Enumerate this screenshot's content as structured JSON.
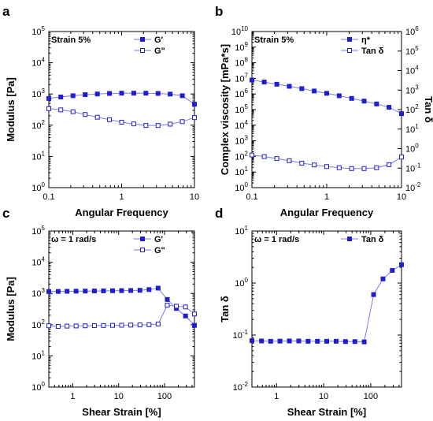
{
  "chart_data": [
    {
      "type": "line",
      "panel_label": "a",
      "annotation": "Strain 5%",
      "xlabel": "Angular Frequency",
      "ylabel": "Modulus [Pa]",
      "xscale": "log",
      "yscale": "log",
      "xlim": [
        0.1,
        10
      ],
      "ylim": [
        1,
        100000
      ],
      "xticks": [
        0.1,
        1,
        10
      ],
      "xtick_labels": [
        "0.1",
        "1",
        "10"
      ],
      "yticks": [
        1,
        10,
        100,
        1000,
        10000,
        100000
      ],
      "ytick_labels": [
        [
          "10",
          "0"
        ],
        [
          "10",
          "1"
        ],
        [
          "10",
          "2"
        ],
        [
          "10",
          "3"
        ],
        [
          "10",
          "4"
        ],
        [
          "10",
          "5"
        ]
      ],
      "legend_position": "top-right",
      "series": [
        {
          "name": "G'",
          "marker": "filled-square",
          "axis": "left",
          "x": [
            0.1,
            0.146,
            0.215,
            0.316,
            0.464,
            0.681,
            1.0,
            1.468,
            2.154,
            3.162,
            4.642,
            6.813,
            10
          ],
          "y": [
            720,
            800,
            880,
            950,
            1000,
            1040,
            1060,
            1060,
            1060,
            1040,
            990,
            880,
            470
          ]
        },
        {
          "name": "G\"",
          "marker": "open-square",
          "axis": "left",
          "x": [
            0.1,
            0.146,
            0.215,
            0.316,
            0.464,
            0.681,
            1.0,
            1.468,
            2.154,
            3.162,
            4.642,
            6.813,
            10
          ],
          "y": [
            340,
            310,
            270,
            220,
            180,
            150,
            125,
            110,
            98,
            98,
            108,
            130,
            175
          ]
        }
      ]
    },
    {
      "type": "line",
      "panel_label": "b",
      "annotation": "Strain 5%",
      "xlabel": "Angular Frequency",
      "ylabel": "Complex viscosity [mPa*s]",
      "y2label": "Tan δ",
      "xscale": "log",
      "yscale": "log",
      "y2scale": "log",
      "xlim": [
        0.1,
        10
      ],
      "ylim": [
        1,
        10000000000
      ],
      "y2lim": [
        0.01,
        1000000
      ],
      "xticks": [
        0.1,
        1,
        10
      ],
      "xtick_labels": [
        "0.1",
        "1",
        "10"
      ],
      "yticks": [
        1,
        10,
        100,
        1000,
        10000,
        100000,
        1000000,
        10000000,
        100000000,
        1000000000,
        10000000000
      ],
      "ytick_labels": [
        [
          "10",
          "0"
        ],
        [
          "10",
          "1"
        ],
        [
          "10",
          "2"
        ],
        [
          "10",
          "3"
        ],
        [
          "10",
          "4"
        ],
        [
          "10",
          "5"
        ],
        [
          "10",
          "6"
        ],
        [
          "10",
          "7"
        ],
        [
          "10",
          "8"
        ],
        [
          "10",
          "9"
        ],
        [
          "10",
          "10"
        ]
      ],
      "y2ticks": [
        0.01,
        0.1,
        1,
        10,
        100,
        1000,
        10000,
        100000,
        1000000
      ],
      "y2tick_labels": [
        [
          "10",
          "-2"
        ],
        [
          "10",
          "-1"
        ],
        [
          "10",
          "0"
        ],
        [
          "10",
          "1"
        ],
        [
          "10",
          "2"
        ],
        [
          "10",
          "3"
        ],
        [
          "10",
          "4"
        ],
        [
          "10",
          "5"
        ],
        [
          "10",
          "6"
        ]
      ],
      "legend_position": "top-right",
      "series": [
        {
          "name": "η*",
          "marker": "filled-square",
          "axis": "left",
          "x": [
            0.1,
            0.146,
            0.215,
            0.316,
            0.464,
            0.681,
            1.0,
            1.468,
            2.154,
            3.162,
            4.642,
            6.813,
            10
          ],
          "y": [
            7800000,
            5800000,
            4200000,
            3100000,
            2200000,
            1550000,
            1100000,
            770000,
            520000,
            350000,
            230000,
            140000,
            55000
          ]
        },
        {
          "name": "Tan δ",
          "marker": "open-square",
          "axis": "right",
          "x": [
            0.1,
            0.146,
            0.215,
            0.316,
            0.464,
            0.681,
            1.0,
            1.468,
            2.154,
            3.162,
            4.642,
            6.813,
            10
          ],
          "y": [
            0.47,
            0.39,
            0.31,
            0.24,
            0.18,
            0.145,
            0.12,
            0.105,
            0.095,
            0.095,
            0.105,
            0.15,
            0.37
          ]
        }
      ]
    },
    {
      "type": "line",
      "panel_label": "c",
      "annotation": "ω = 1 rad/s",
      "xlabel": "Shear Strain [%]",
      "ylabel": "Modulus [Pa]",
      "xscale": "log",
      "yscale": "log",
      "xlim": [
        0.3,
        450
      ],
      "ylim": [
        1,
        100000
      ],
      "xticks": [
        1,
        10,
        100
      ],
      "xtick_labels": [
        "1",
        "10",
        "100"
      ],
      "yticks": [
        1,
        10,
        100,
        1000,
        10000,
        100000
      ],
      "ytick_labels": [
        [
          "10",
          "0"
        ],
        [
          "10",
          "1"
        ],
        [
          "10",
          "2"
        ],
        [
          "10",
          "3"
        ],
        [
          "10",
          "4"
        ],
        [
          "10",
          "5"
        ]
      ],
      "legend_position": "top-right",
      "series": [
        {
          "name": "G'",
          "marker": "filled-square",
          "axis": "left",
          "x": [
            0.3,
            0.48,
            0.75,
            1.18,
            1.87,
            2.96,
            4.67,
            7.38,
            11.6,
            18.4,
            29.1,
            46,
            72.6,
            115,
            182,
            287,
            450
          ],
          "y": [
            1150,
            1160,
            1170,
            1180,
            1190,
            1200,
            1210,
            1220,
            1230,
            1240,
            1260,
            1330,
            1480,
            640,
            330,
            190,
            95
          ]
        },
        {
          "name": "G\"",
          "marker": "open-square",
          "axis": "left",
          "x": [
            0.3,
            0.48,
            0.75,
            1.18,
            1.87,
            2.96,
            4.67,
            7.38,
            11.6,
            18.4,
            29.1,
            46,
            72.6,
            115,
            182,
            287,
            450
          ],
          "y": [
            92,
            88,
            90,
            91,
            92,
            93,
            94,
            95,
            96,
            97,
            98,
            100,
            105,
            420,
            390,
            370,
            220
          ]
        }
      ]
    },
    {
      "type": "line",
      "panel_label": "d",
      "annotation": "ω = 1 rad/s",
      "xlabel": "Shear Strain [%]",
      "ylabel": "Tan δ",
      "xscale": "log",
      "yscale": "log",
      "xlim": [
        0.3,
        450
      ],
      "ylim": [
        0.01,
        10
      ],
      "xticks": [
        1,
        10,
        100
      ],
      "xtick_labels": [
        "1",
        "10",
        "100"
      ],
      "yticks": [
        0.01,
        0.1,
        1,
        10
      ],
      "ytick_labels": [
        [
          "10",
          "-2"
        ],
        [
          "10",
          "-1"
        ],
        [
          "10",
          "0"
        ],
        [
          "10",
          "1"
        ]
      ],
      "legend_position": "top-right",
      "series": [
        {
          "name": "Tan δ",
          "marker": "filled-square",
          "axis": "left",
          "x": [
            0.3,
            0.48,
            0.75,
            1.18,
            1.87,
            2.96,
            4.67,
            7.38,
            11.6,
            18.4,
            29.1,
            46,
            72.6,
            115,
            182,
            287,
            450
          ],
          "y": [
            0.078,
            0.077,
            0.076,
            0.0765,
            0.077,
            0.077,
            0.076,
            0.076,
            0.076,
            0.076,
            0.075,
            0.075,
            0.074,
            0.6,
            1.2,
            1.75,
            2.25
          ]
        }
      ]
    }
  ],
  "colors": {
    "series": "#1f1fd0",
    "line": "#7a7aee",
    "axis": "#000000"
  }
}
